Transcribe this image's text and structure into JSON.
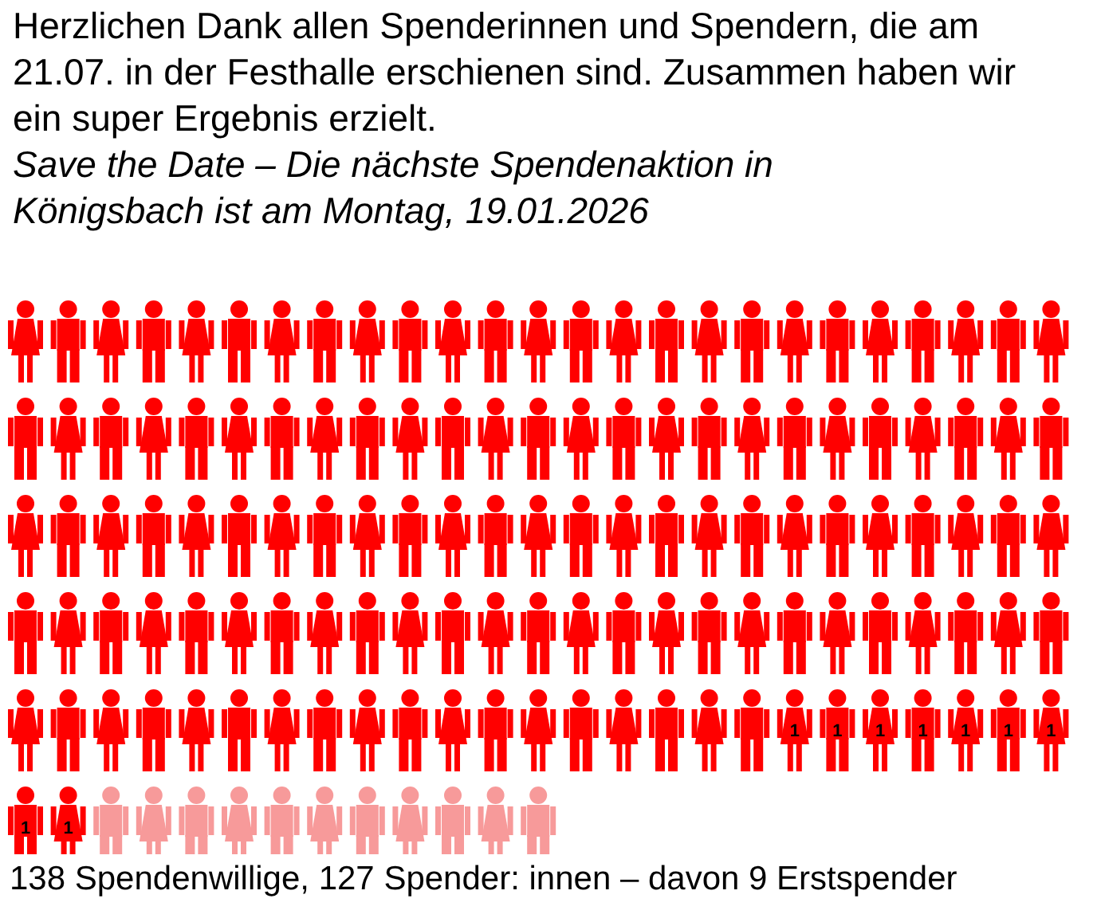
{
  "chart_data": {
    "type": "other",
    "title": "Herzlichen Dank allen Spenderinnen und Spendern, die am 21.07. in der Festhalle erschienen sind. Zusammen haben wir ein super Ergebnis erzielt.",
    "subtitle": "Save the Date – Die nächste Spendenaktion in Königsbach ist am Montag, 19.01.2026",
    "categories": [
      null,
      null,
      null
    ],
    "values": [
      138,
      127,
      9
    ],
    "value_labels": [
      "138 Spendenwillige,",
      "127 Spender: innen – davon",
      "9 Erstspender"
    ],
    "colors": [
      "#f79a9a",
      "#ff0000",
      "#ff0000"
    ],
    "annotations": [
      "1"
    ]
  }
}
